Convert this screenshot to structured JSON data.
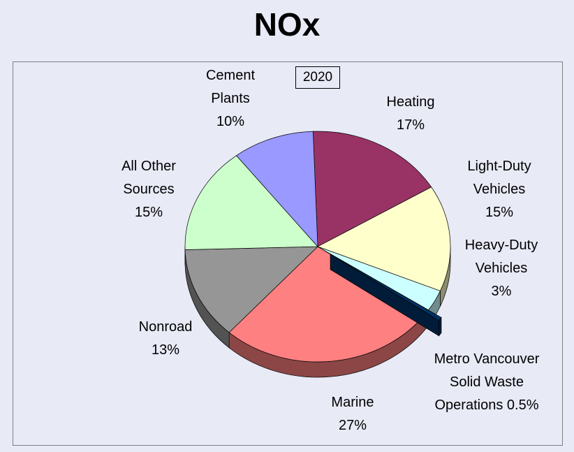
{
  "chart_data": {
    "type": "pie",
    "title": "NOx",
    "annotation": "2020",
    "categories": [
      "Heating",
      "Light-Duty Vehicles",
      "Heavy-Duty Vehicles",
      "Metro Vancouver Solid Waste Operations",
      "Marine",
      "Nonroad",
      "All Other Sources",
      "Cement Plants"
    ],
    "values": [
      17,
      15,
      3,
      0.5,
      27,
      13,
      15,
      10
    ],
    "value_labels": [
      "17%",
      "15%",
      "3%",
      "0.5%",
      "27%",
      "13%",
      "15%",
      "10%"
    ],
    "colors": [
      "#993366",
      "#ffffcc",
      "#ccffff",
      "#003366",
      "#ff8080",
      "#969696",
      "#ccffcc",
      "#9999ff"
    ],
    "exploded": [
      "Metro Vancouver Solid Waste Operations"
    ]
  }
}
